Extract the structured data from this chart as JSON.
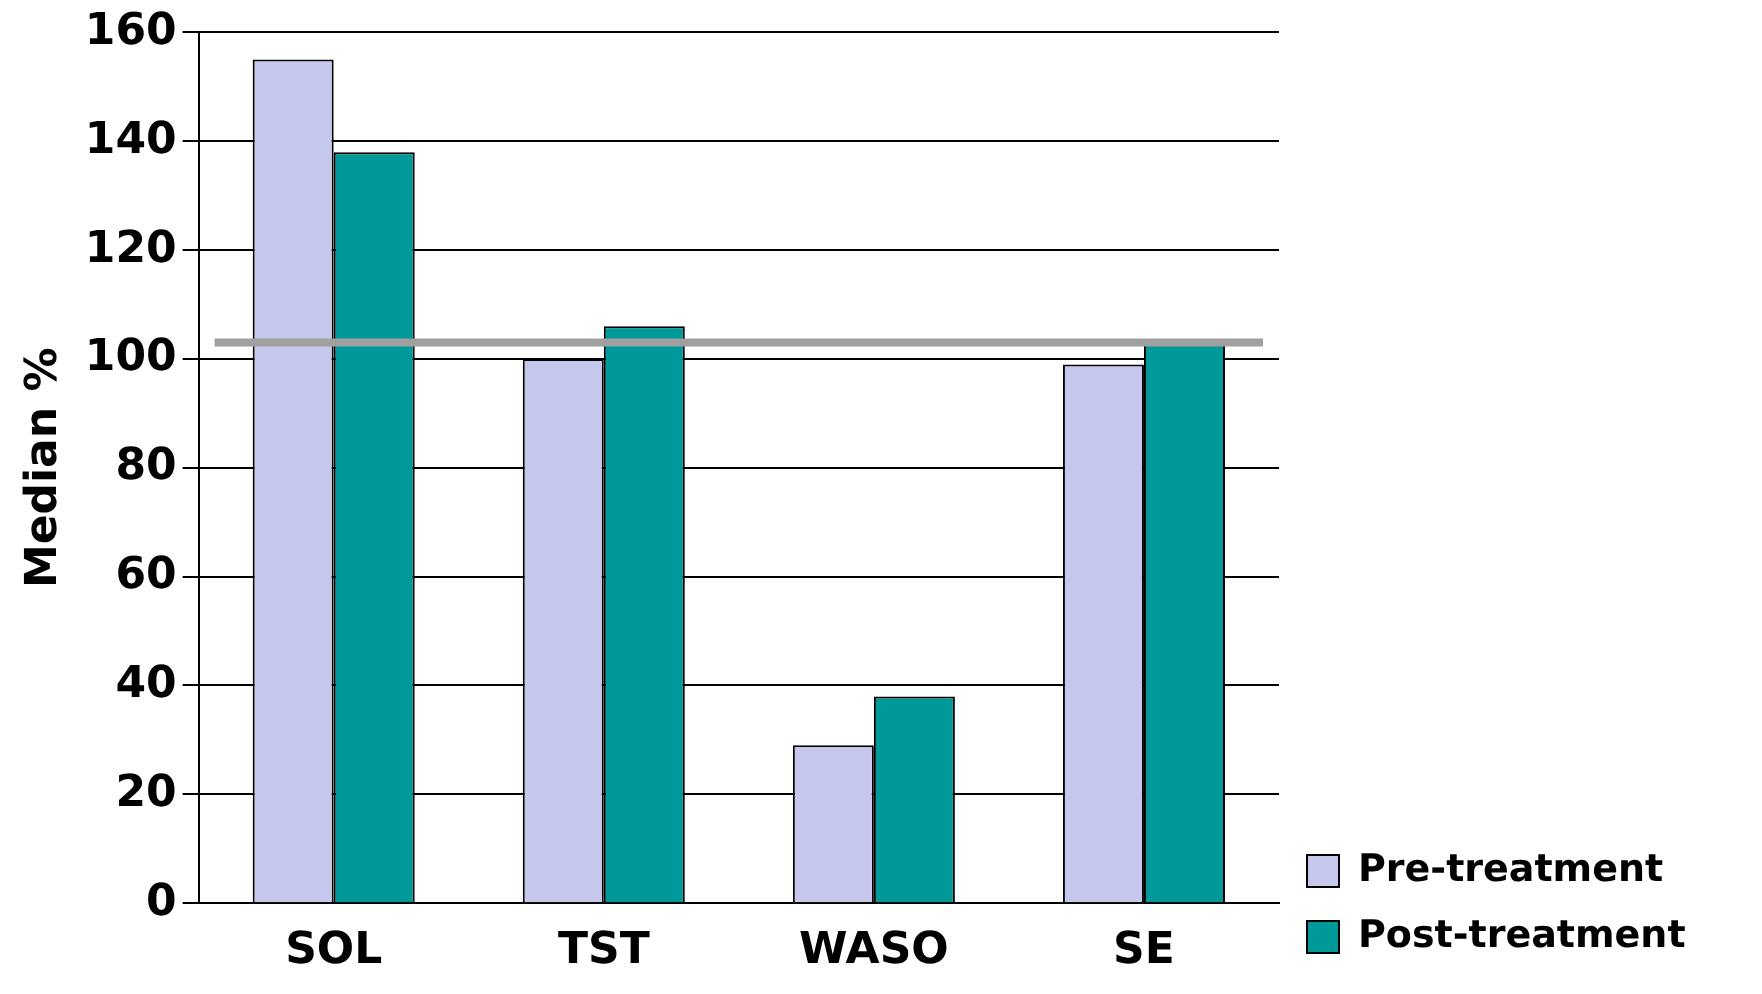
{
  "chart_data": {
    "type": "bar",
    "ylabel": "Median %",
    "categories": [
      "SOL",
      "TST",
      "WASO",
      "SE"
    ],
    "series": [
      {
        "name": "Pre-treatment",
        "color": "#c5c8ec",
        "values": [
          155,
          100,
          29,
          99
        ]
      },
      {
        "name": "Post-treatment",
        "color": "#009999",
        "values": [
          138,
          106,
          38,
          103
        ]
      }
    ],
    "ylim": [
      0,
      160
    ],
    "yticks": [
      0,
      20,
      40,
      60,
      80,
      100,
      120,
      140,
      160
    ],
    "grid": "y",
    "legend": "bottom right",
    "ref_lines": [
      {
        "axis": "y",
        "value": 103,
        "color": "#a0a0a0"
      }
    ]
  }
}
